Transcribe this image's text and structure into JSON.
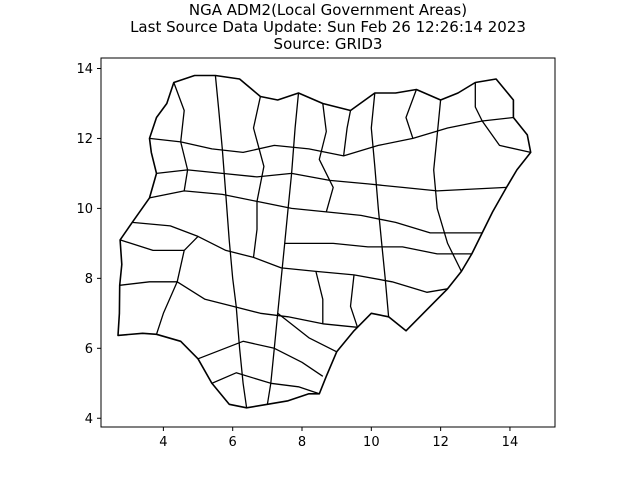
{
  "figure": {
    "title_line1": "NGA ADM2(Local Government Areas)",
    "title_line2": "Last Source Data Update: Sun Feb 26 12:26:14 2023",
    "title_line3": "Source: GRID3"
  },
  "chart_data": {
    "type": "map",
    "country": "NGA",
    "x_ticks": [
      "4",
      "6",
      "8",
      "10",
      "12",
      "14"
    ],
    "y_ticks": [
      "4",
      "6",
      "8",
      "10",
      "12",
      "14"
    ],
    "xlim": [
      2.2,
      15.3
    ],
    "ylim": [
      3.75,
      14.3
    ],
    "grid": false,
    "legend": "none",
    "outline_color": "#000000",
    "fill_color": "#ffffff",
    "country_outline": [
      [
        2.69,
        6.37
      ],
      [
        2.73,
        7.0
      ],
      [
        2.74,
        7.8
      ],
      [
        2.8,
        8.4
      ],
      [
        2.75,
        9.1
      ],
      [
        3.1,
        9.6
      ],
      [
        3.6,
        10.3
      ],
      [
        3.8,
        11.0
      ],
      [
        3.65,
        11.6
      ],
      [
        3.6,
        12.0
      ],
      [
        3.8,
        12.6
      ],
      [
        4.1,
        13.0
      ],
      [
        4.3,
        13.6
      ],
      [
        4.9,
        13.8
      ],
      [
        5.5,
        13.8
      ],
      [
        6.2,
        13.7
      ],
      [
        6.8,
        13.2
      ],
      [
        7.3,
        13.1
      ],
      [
        7.9,
        13.3
      ],
      [
        8.6,
        13.0
      ],
      [
        9.4,
        12.8
      ],
      [
        10.1,
        13.3
      ],
      [
        10.7,
        13.3
      ],
      [
        11.3,
        13.4
      ],
      [
        12.0,
        13.1
      ],
      [
        12.5,
        13.3
      ],
      [
        13.0,
        13.6
      ],
      [
        13.6,
        13.7
      ],
      [
        14.1,
        13.1
      ],
      [
        14.1,
        12.6
      ],
      [
        14.5,
        12.1
      ],
      [
        14.6,
        11.6
      ],
      [
        14.2,
        11.1
      ],
      [
        13.9,
        10.6
      ],
      [
        13.5,
        9.9
      ],
      [
        13.2,
        9.3
      ],
      [
        12.9,
        8.7
      ],
      [
        12.6,
        8.2
      ],
      [
        12.2,
        7.7
      ],
      [
        11.8,
        7.3
      ],
      [
        11.0,
        6.5
      ],
      [
        10.5,
        6.9
      ],
      [
        10.0,
        7.0
      ],
      [
        9.5,
        6.5
      ],
      [
        9.0,
        5.9
      ],
      [
        8.7,
        5.2
      ],
      [
        8.5,
        4.7
      ],
      [
        8.2,
        4.7
      ],
      [
        7.6,
        4.5
      ],
      [
        7.0,
        4.4
      ],
      [
        6.4,
        4.3
      ],
      [
        5.9,
        4.4
      ],
      [
        5.4,
        5.0
      ],
      [
        5.0,
        5.7
      ],
      [
        4.5,
        6.2
      ],
      [
        3.8,
        6.4
      ],
      [
        3.4,
        6.43
      ],
      [
        2.69,
        6.37
      ]
    ],
    "interior_boundaries": [
      [
        [
          3.1,
          9.6
        ],
        [
          4.2,
          9.5
        ],
        [
          5.0,
          9.2
        ],
        [
          5.8,
          8.8
        ],
        [
          6.6,
          8.6
        ],
        [
          7.4,
          8.3
        ],
        [
          8.4,
          8.2
        ],
        [
          9.5,
          8.1
        ],
        [
          10.6,
          7.9
        ],
        [
          11.6,
          7.6
        ],
        [
          12.2,
          7.7
        ]
      ],
      [
        [
          3.6,
          12.0
        ],
        [
          4.5,
          11.9
        ],
        [
          5.4,
          11.7
        ],
        [
          6.3,
          11.6
        ],
        [
          7.2,
          11.8
        ],
        [
          8.2,
          11.7
        ],
        [
          9.2,
          11.5
        ],
        [
          10.2,
          11.8
        ],
        [
          11.2,
          12.0
        ],
        [
          12.2,
          12.3
        ],
        [
          13.2,
          12.5
        ],
        [
          14.1,
          12.6
        ]
      ],
      [
        [
          4.4,
          7.9
        ],
        [
          5.2,
          7.4
        ],
        [
          6.0,
          7.2
        ],
        [
          6.8,
          7.0
        ],
        [
          7.6,
          6.9
        ],
        [
          8.6,
          6.7
        ],
        [
          9.6,
          6.6
        ]
      ],
      [
        [
          3.6,
          10.3
        ],
        [
          4.6,
          10.5
        ],
        [
          5.7,
          10.4
        ],
        [
          6.7,
          10.2
        ],
        [
          7.7,
          10.0
        ],
        [
          8.7,
          9.9
        ],
        [
          9.7,
          9.8
        ],
        [
          10.7,
          9.6
        ],
        [
          11.7,
          9.3
        ],
        [
          13.2,
          9.3
        ]
      ],
      [
        [
          5.5,
          13.8
        ],
        [
          5.6,
          12.8
        ],
        [
          5.7,
          11.7
        ],
        [
          5.8,
          10.4
        ],
        [
          5.9,
          9.1
        ],
        [
          6.0,
          8.0
        ],
        [
          6.1,
          7.2
        ],
        [
          6.2,
          6.0
        ],
        [
          6.3,
          5.0
        ],
        [
          6.4,
          4.3
        ]
      ],
      [
        [
          7.9,
          13.3
        ],
        [
          7.8,
          12.3
        ],
        [
          7.7,
          11.0
        ],
        [
          7.6,
          10.0
        ],
        [
          7.5,
          9.0
        ],
        [
          7.4,
          8.0
        ],
        [
          7.3,
          7.0
        ],
        [
          7.2,
          6.0
        ],
        [
          7.1,
          5.0
        ],
        [
          7.0,
          4.4
        ]
      ],
      [
        [
          10.1,
          13.3
        ],
        [
          10.0,
          12.3
        ],
        [
          10.1,
          11.2
        ],
        [
          10.2,
          10.0
        ],
        [
          10.3,
          9.0
        ],
        [
          10.4,
          8.0
        ],
        [
          10.5,
          6.9
        ]
      ],
      [
        [
          12.0,
          13.1
        ],
        [
          11.9,
          12.1
        ],
        [
          11.8,
          11.1
        ],
        [
          11.9,
          10.0
        ],
        [
          12.2,
          9.0
        ],
        [
          12.6,
          8.2
        ]
      ],
      [
        [
          2.74,
          7.8
        ],
        [
          3.6,
          7.9
        ],
        [
          4.4,
          7.9
        ],
        [
          4.6,
          8.8
        ],
        [
          5.0,
          9.2
        ]
      ],
      [
        [
          3.8,
          6.4
        ],
        [
          4.0,
          7.0
        ],
        [
          4.4,
          7.9
        ]
      ],
      [
        [
          8.6,
          5.2
        ],
        [
          8.0,
          5.6
        ],
        [
          7.2,
          6.0
        ],
        [
          6.3,
          6.2
        ],
        [
          5.0,
          5.7
        ]
      ],
      [
        [
          9.0,
          5.9
        ],
        [
          8.2,
          6.3
        ],
        [
          7.3,
          7.0
        ]
      ],
      [
        [
          8.6,
          13.0
        ],
        [
          8.7,
          12.2
        ],
        [
          8.5,
          11.4
        ],
        [
          8.9,
          10.6
        ],
        [
          8.7,
          9.9
        ]
      ],
      [
        [
          6.8,
          13.2
        ],
        [
          6.6,
          12.3
        ],
        [
          6.9,
          11.2
        ],
        [
          6.7,
          10.2
        ]
      ],
      [
        [
          11.3,
          13.4
        ],
        [
          11.0,
          12.6
        ],
        [
          11.2,
          12.0
        ]
      ],
      [
        [
          13.0,
          13.6
        ],
        [
          13.0,
          12.9
        ],
        [
          13.2,
          12.5
        ],
        [
          13.7,
          11.8
        ],
        [
          14.6,
          11.6
        ]
      ],
      [
        [
          3.8,
          11.0
        ],
        [
          4.7,
          11.1
        ],
        [
          5.7,
          11.0
        ],
        [
          6.7,
          10.9
        ],
        [
          7.7,
          11.0
        ],
        [
          8.8,
          10.8
        ],
        [
          9.9,
          10.7
        ],
        [
          10.9,
          10.6
        ],
        [
          11.9,
          10.5
        ],
        [
          13.9,
          10.6
        ]
      ],
      [
        [
          2.75,
          9.1
        ],
        [
          3.7,
          8.8
        ],
        [
          4.6,
          8.8
        ]
      ],
      [
        [
          8.4,
          8.2
        ],
        [
          8.6,
          7.4
        ],
        [
          8.6,
          6.7
        ]
      ],
      [
        [
          9.5,
          8.1
        ],
        [
          9.4,
          7.2
        ],
        [
          9.6,
          6.6
        ]
      ],
      [
        [
          6.6,
          8.6
        ],
        [
          6.7,
          9.4
        ],
        [
          6.7,
          10.2
        ]
      ],
      [
        [
          9.2,
          11.5
        ],
        [
          9.3,
          12.3
        ],
        [
          9.4,
          12.8
        ]
      ],
      [
        [
          4.3,
          13.6
        ],
        [
          4.6,
          12.8
        ],
        [
          4.5,
          11.9
        ],
        [
          4.7,
          11.1
        ],
        [
          4.6,
          10.5
        ]
      ],
      [
        [
          12.9,
          8.7
        ],
        [
          11.9,
          8.7
        ],
        [
          10.9,
          8.9
        ],
        [
          9.9,
          8.9
        ],
        [
          8.9,
          9.0
        ],
        [
          7.5,
          9.0
        ]
      ],
      [
        [
          5.4,
          5.0
        ],
        [
          6.1,
          5.3
        ],
        [
          7.1,
          5.0
        ],
        [
          7.9,
          4.9
        ],
        [
          8.5,
          4.7
        ]
      ]
    ]
  }
}
